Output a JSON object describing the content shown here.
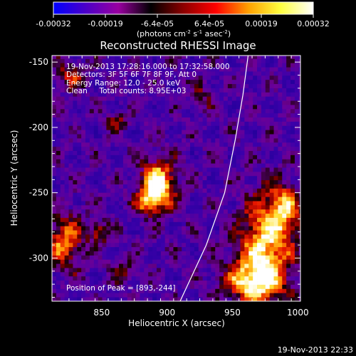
{
  "chart_data": {
    "type": "heatmap",
    "title": "Reconstructed RHESSI Image",
    "colorbar": {
      "ticks": [
        "-0.00032",
        "-0.00019",
        "-6.4e-05",
        "6.4e-05",
        "0.00019",
        "0.00032"
      ],
      "range": [
        -0.00032,
        0.00032
      ],
      "unit_label": "(photons cm",
      "unit_sup1": "-2",
      "unit_mid": " s",
      "unit_sup2": "-1",
      "unit_mid2": " asec",
      "unit_sup3": "-2",
      "unit_end": ")",
      "colors": [
        "#0000ff",
        "#4c00c8",
        "#9900a0",
        "#000000",
        "#8c0000",
        "#ff0000",
        "#ffa000",
        "#ffff40",
        "#ffffff"
      ]
    },
    "xlabel": "Heliocentric X (arcsec)",
    "ylabel": "Heliocentric Y (arcsec)",
    "xlim": [
      812,
      1002
    ],
    "ylim": [
      -333,
      -145
    ],
    "xticks": [
      "850",
      "900",
      "950",
      "1000"
    ],
    "xtick_values": [
      850,
      900,
      950,
      1000
    ],
    "yticks": [
      "-150",
      "-200",
      "-250",
      "-300"
    ],
    "ytick_values": [
      -150,
      -200,
      -250,
      -300
    ],
    "annotations": [
      "19-Nov-2013 17:28:16.000 to 17:32:58.000",
      "Detectors: 3F 5F 6F 7F 8F 9F, Att 0",
      "Energy Range: 12.0 - 25.0 keV",
      "Clean     Total counts: 8.95E+03"
    ],
    "peak_label": "Position of Peak = [893,-244]",
    "peak": [
      893,
      -244
    ],
    "limb_points": [
      [
        910,
        -333
      ],
      [
        930,
        -290
      ],
      [
        944,
        -250
      ],
      [
        952,
        -210
      ],
      [
        958,
        -175
      ],
      [
        962,
        -145
      ]
    ],
    "sources": [
      {
        "x": 893,
        "y": -244,
        "sx": 9,
        "sy": 13,
        "amp": 1.0
      },
      {
        "x": 885,
        "y": -257,
        "sx": 6,
        "sy": 6,
        "amp": 0.5
      },
      {
        "x": 975,
        "y": -295,
        "sx": 14,
        "sy": 28,
        "amp": 0.85
      },
      {
        "x": 990,
        "y": -262,
        "sx": 9,
        "sy": 13,
        "amp": 0.6
      },
      {
        "x": 962,
        "y": -318,
        "sx": 14,
        "sy": 10,
        "amp": 0.6
      },
      {
        "x": 822,
        "y": -287,
        "sx": 10,
        "sy": 14,
        "amp": 0.65
      },
      {
        "x": 848,
        "y": -280,
        "sx": 6,
        "sy": 6,
        "amp": 0.45
      },
      {
        "x": 826,
        "y": -160,
        "sx": 8,
        "sy": 8,
        "amp": 0.4
      },
      {
        "x": 862,
        "y": -195,
        "sx": 6,
        "sy": 5,
        "amp": 0.35
      },
      {
        "x": 868,
        "y": -310,
        "sx": 8,
        "sy": 6,
        "amp": 0.3
      },
      {
        "x": 928,
        "y": -175,
        "sx": 6,
        "sy": 8,
        "amp": 0.25
      }
    ]
  },
  "footer_timestamp": "19-Nov-2013 22:33"
}
